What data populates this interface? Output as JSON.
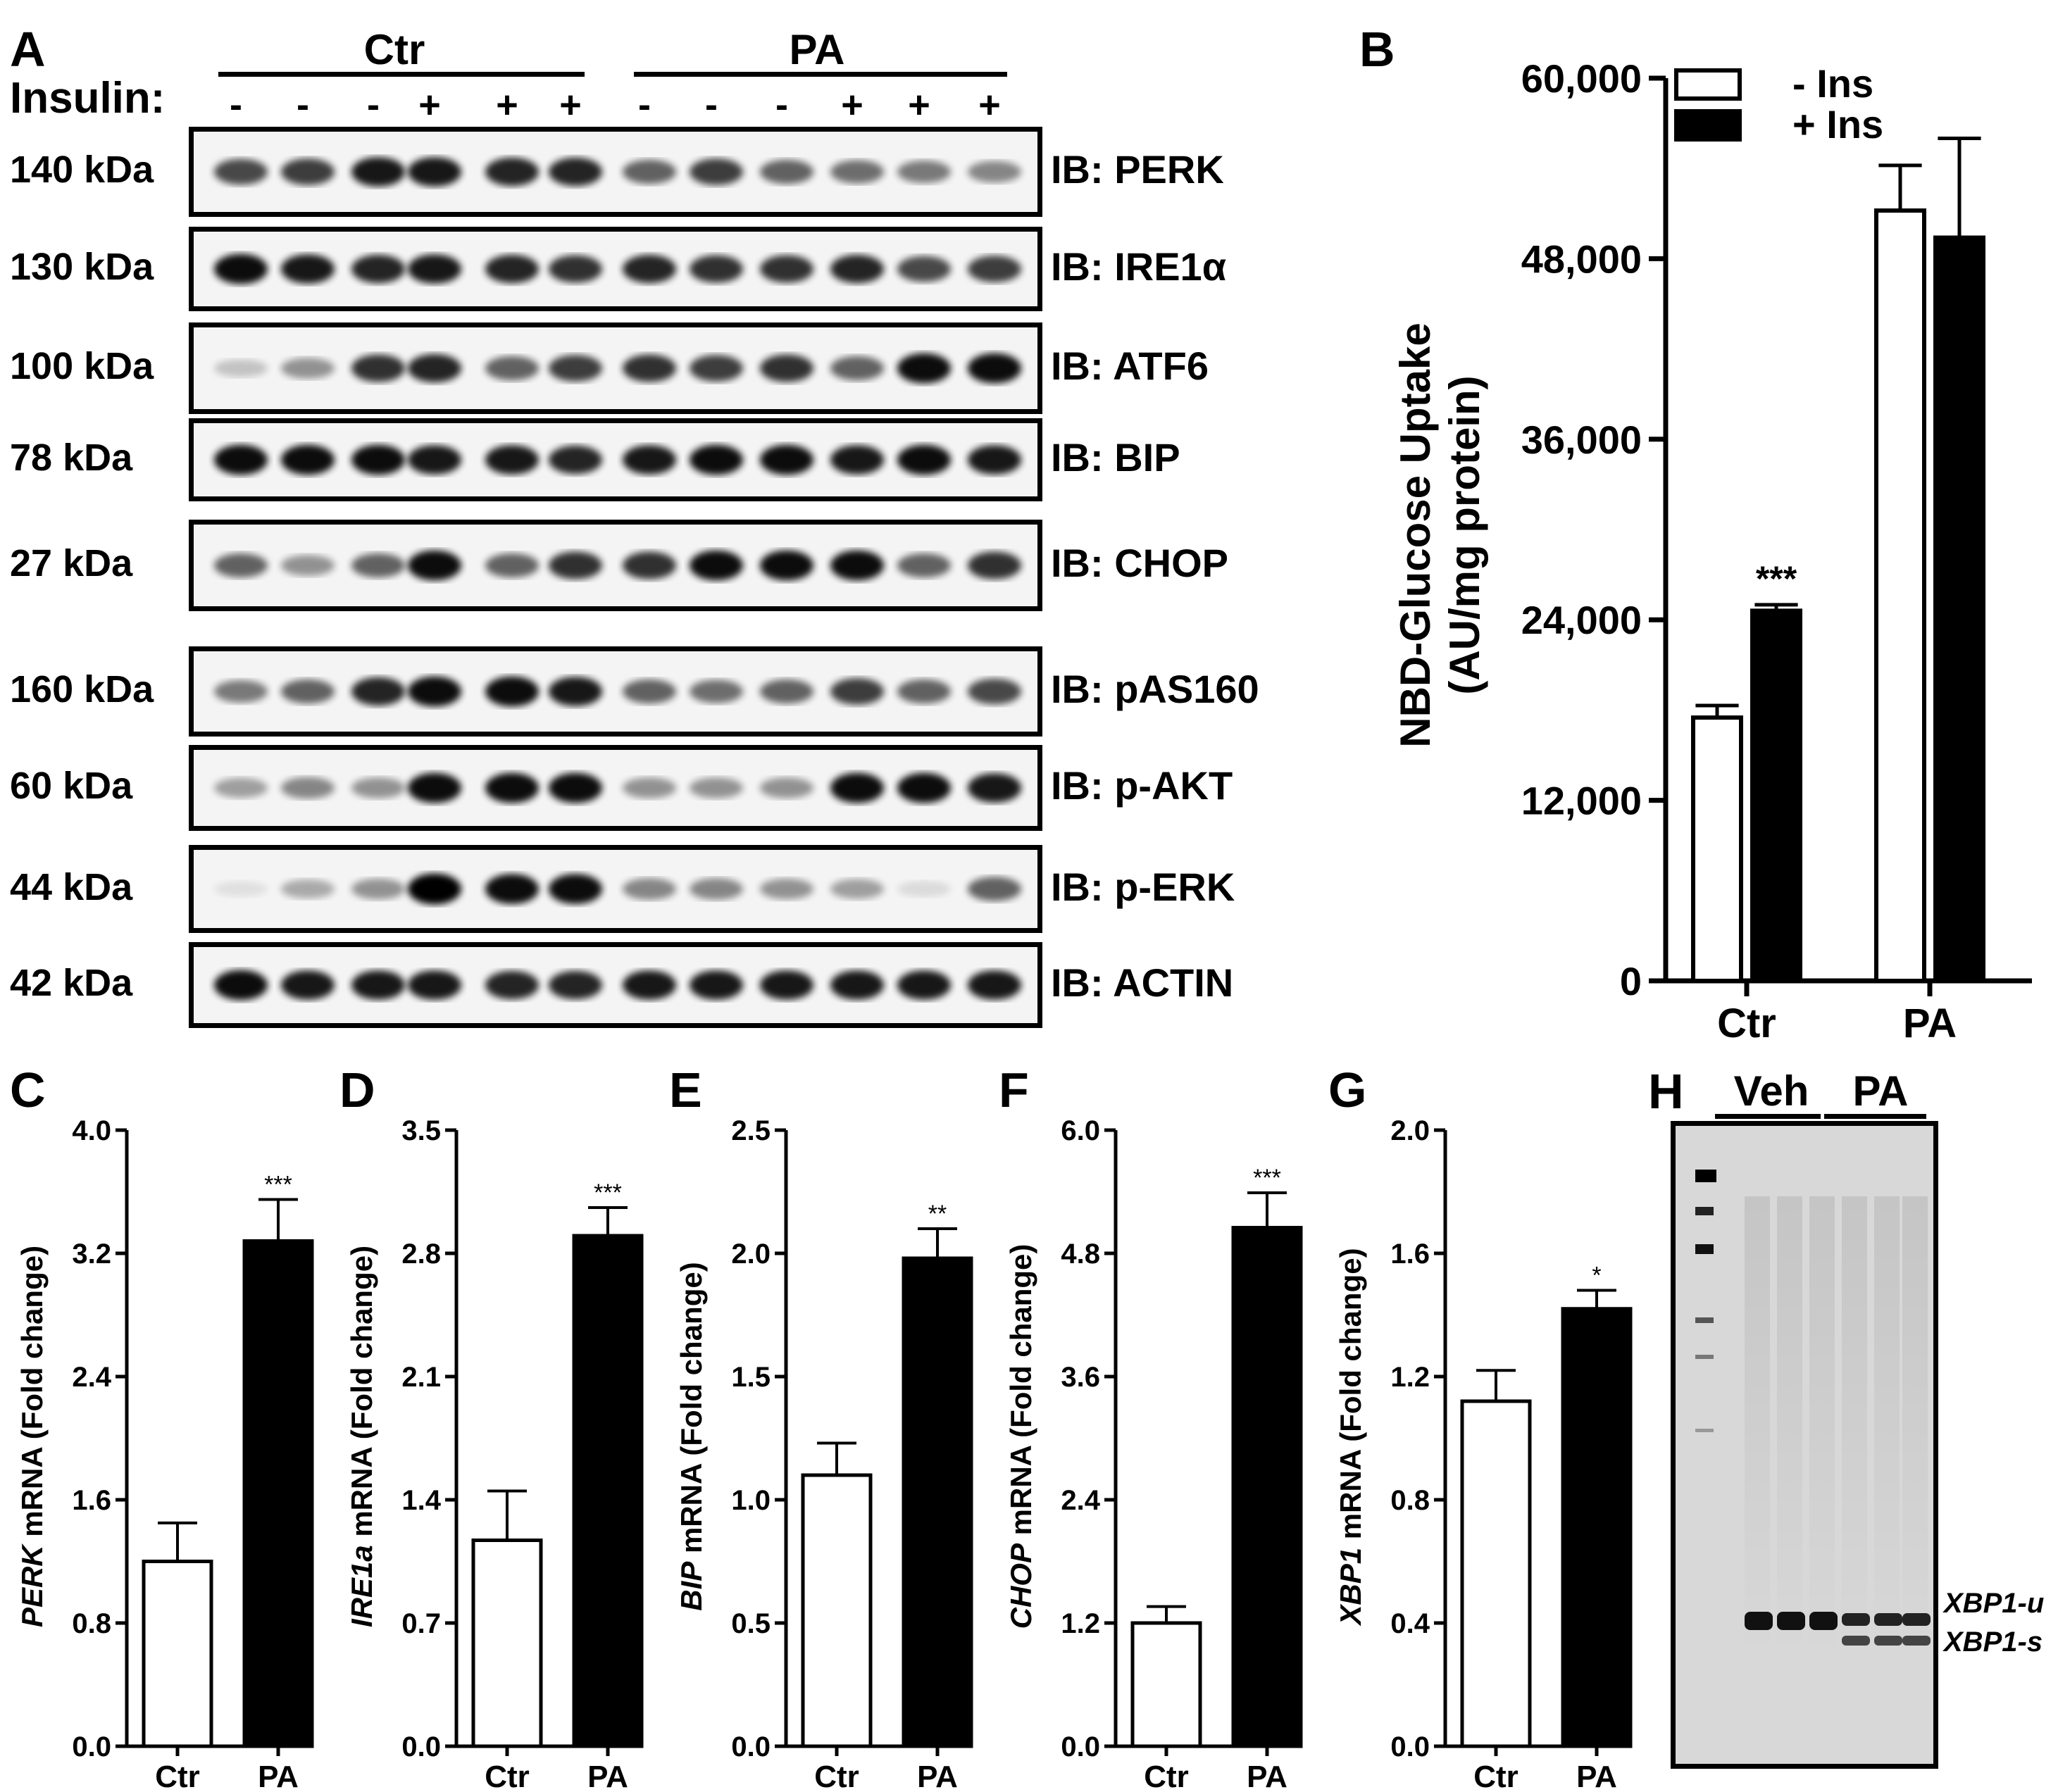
{
  "panel_a": {
    "letter": "A",
    "groups": [
      "Ctr",
      "PA"
    ],
    "insulin_label": "Insulin:",
    "insulin_signs": [
      "-",
      "-",
      "-",
      "+",
      "+",
      "+",
      "-",
      "-",
      "-",
      "+",
      "+",
      "+"
    ],
    "blots": [
      {
        "kda": "140 kDa",
        "label": "IB: PERK"
      },
      {
        "kda": "130 kDa",
        "label": "IB: IRE1α"
      },
      {
        "kda": "100 kDa",
        "label": "IB: ATF6"
      },
      {
        "kda": "78 kDa",
        "label": "IB: BIP"
      },
      {
        "kda": "27 kDa",
        "label": "IB: CHOP"
      },
      {
        "kda": "160 kDa",
        "label": "IB: pAS160"
      },
      {
        "kda": "60 kDa",
        "label": "IB: p-AKT"
      },
      {
        "kda": "44 kDa",
        "label": "IB: p-ERK"
      },
      {
        "kda": "42 kDa",
        "label": "IB: ACTIN"
      }
    ]
  },
  "panel_h": {
    "letter": "H",
    "groups": [
      "Veh",
      "PA"
    ],
    "bands": [
      "XBP1-u",
      "XBP1-s"
    ]
  },
  "chart_data": [
    {
      "panel": "B",
      "type": "bar",
      "categories": [
        "Ctr",
        "PA"
      ],
      "series": [
        {
          "name": "- Ins",
          "values": [
            17500,
            51200
          ],
          "errors": [
            800,
            3000
          ],
          "color": "#ffffff"
        },
        {
          "name": "+ Ins",
          "values": [
            24600,
            49400
          ],
          "errors": [
            400,
            6600
          ],
          "color": "#000000"
        }
      ],
      "annotations": [
        {
          "category": "Ctr",
          "series": "+ Ins",
          "text": "***"
        }
      ],
      "ylabel_line1": "NBD-Glucose Uptake",
      "ylabel_line2": "(AU/mg protein)",
      "ylim": [
        0,
        60000
      ],
      "ticks": [
        "0",
        "12,000",
        "24,000",
        "36,000",
        "48,000",
        "60,000"
      ],
      "legend_position": "top-left"
    },
    {
      "panel": "C",
      "type": "bar",
      "categories": [
        "Ctr",
        "PA"
      ],
      "values": [
        1.2,
        3.28
      ],
      "errors": [
        0.25,
        0.27
      ],
      "sig": "***",
      "gene": "PERK",
      "ylabel_rest": " mRNA (Fold change)",
      "ylim": [
        0,
        4.0
      ],
      "ticks": [
        "0.0",
        "0.8",
        "1.6",
        "2.4",
        "3.2",
        "4.0"
      ]
    },
    {
      "panel": "D",
      "type": "bar",
      "categories": [
        "Ctr",
        "PA"
      ],
      "values": [
        1.17,
        2.9
      ],
      "errors": [
        0.28,
        0.16
      ],
      "sig": "***",
      "gene": "IRE1a",
      "ylabel_rest": " mRNA (Fold change)",
      "ylim": [
        0,
        3.5
      ],
      "ticks": [
        "0.0",
        "0.7",
        "1.4",
        "2.1",
        "2.8",
        "3.5"
      ]
    },
    {
      "panel": "E",
      "type": "bar",
      "categories": [
        "Ctr",
        "PA"
      ],
      "values": [
        1.1,
        1.98
      ],
      "errors": [
        0.13,
        0.12
      ],
      "sig": "**",
      "gene": "BIP",
      "ylabel_rest": " mRNA (Fold change)",
      "ylim": [
        0,
        2.5
      ],
      "ticks": [
        "0.0",
        "0.5",
        "1.0",
        "1.5",
        "2.0",
        "2.5"
      ]
    },
    {
      "panel": "F",
      "type": "bar",
      "categories": [
        "Ctr",
        "PA"
      ],
      "values": [
        1.2,
        5.05
      ],
      "errors": [
        0.16,
        0.34
      ],
      "sig": "***",
      "gene": "CHOP",
      "ylabel_rest": " mRNA (Fold change)",
      "ylim": [
        0,
        6.0
      ],
      "ticks": [
        "0.0",
        "1.2",
        "2.4",
        "3.6",
        "4.8",
        "6.0"
      ]
    },
    {
      "panel": "G",
      "type": "bar",
      "categories": [
        "Ctr",
        "PA"
      ],
      "values": [
        1.12,
        1.42
      ],
      "errors": [
        0.1,
        0.06
      ],
      "sig": "*",
      "gene": "XBP1",
      "ylabel_rest": " mRNA (Fold change)",
      "ylim": [
        0,
        2.0
      ],
      "ticks": [
        "0.0",
        "0.4",
        "0.8",
        "1.2",
        "1.6",
        "2.0"
      ]
    }
  ]
}
